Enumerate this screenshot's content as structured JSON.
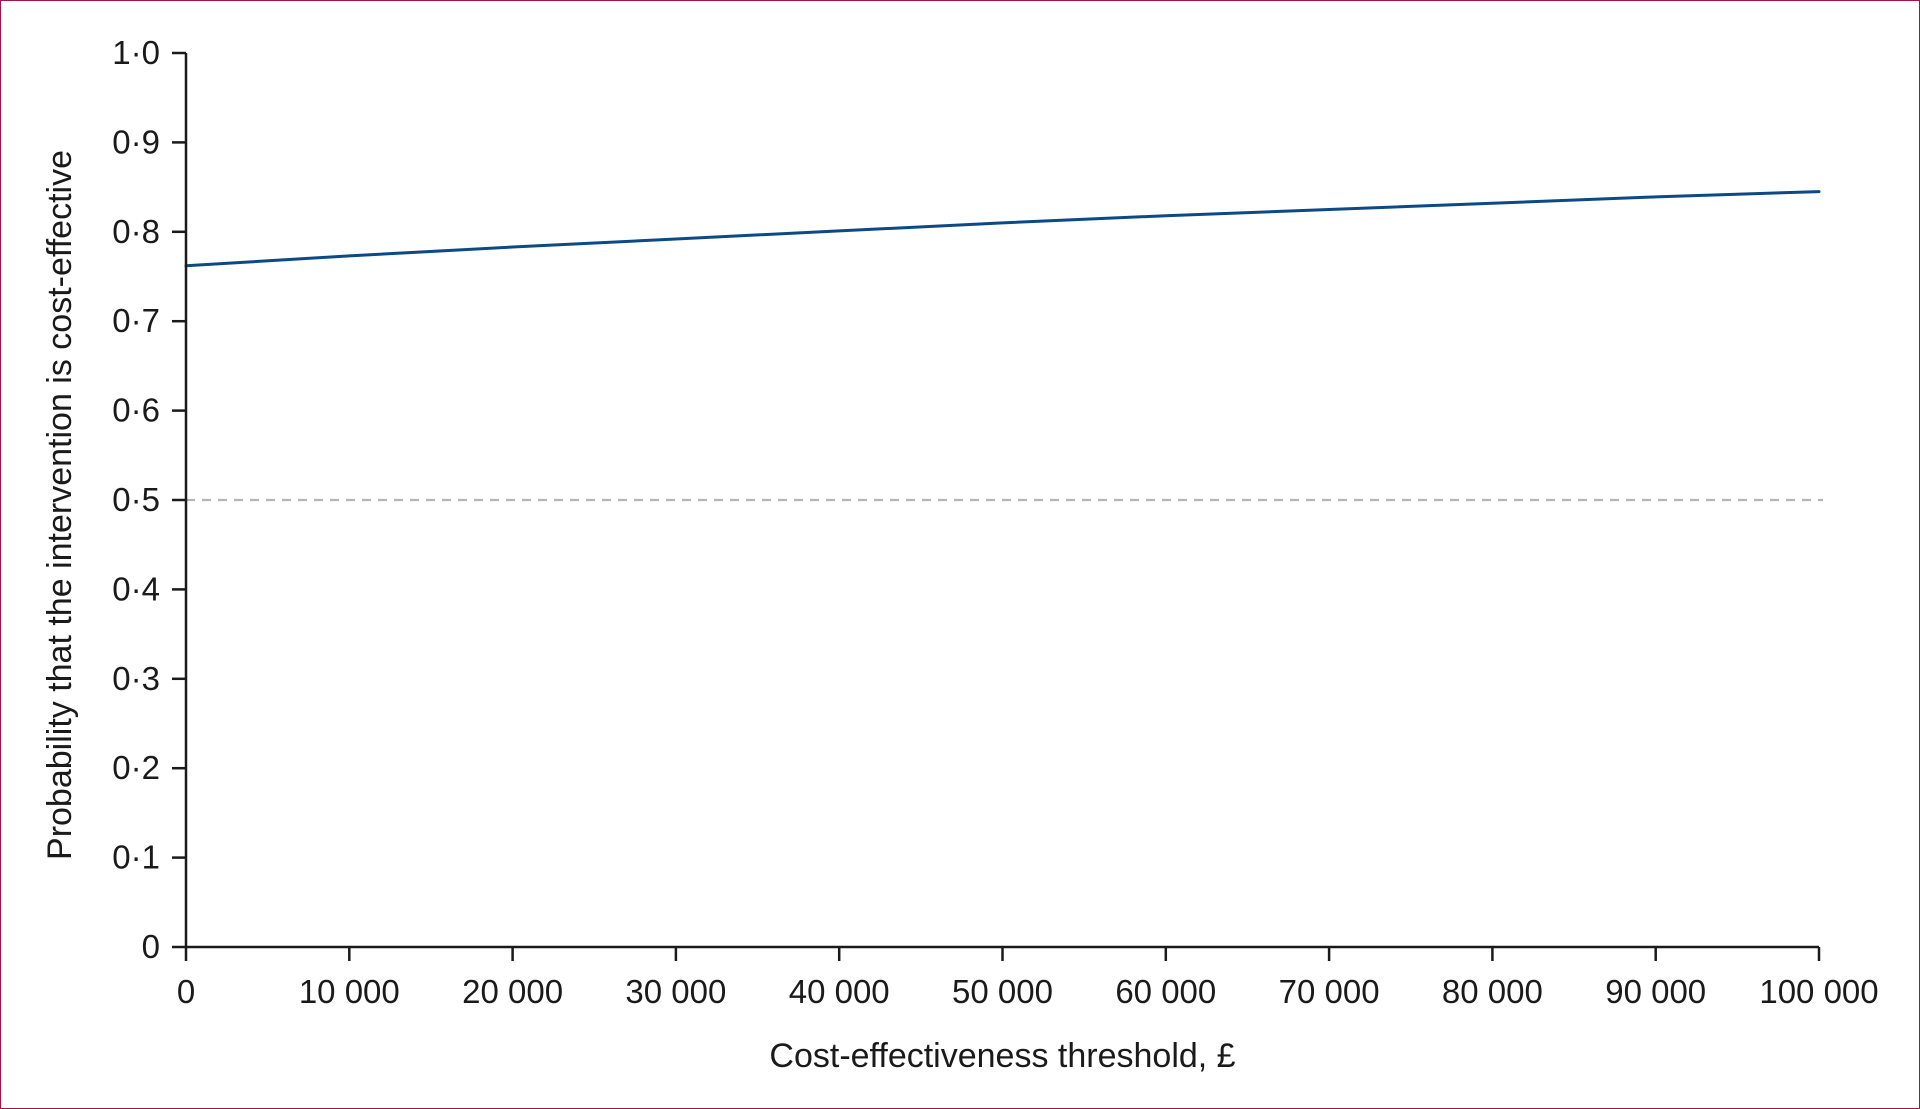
{
  "chart_data": {
    "type": "line",
    "title": "",
    "xlabel": "Cost-effectiveness threshold, £",
    "ylabel": "Probability that the intervention is cost-effective",
    "xlim": [
      0,
      100000
    ],
    "ylim": [
      0,
      1.0
    ],
    "x_ticks": [
      0,
      10000,
      20000,
      30000,
      40000,
      50000,
      60000,
      70000,
      80000,
      90000,
      100000
    ],
    "x_tick_labels": [
      "0",
      "10 000",
      "20 000",
      "30 000",
      "40 000",
      "50 000",
      "60 000",
      "70 000",
      "80 000",
      "90 000",
      "100 000"
    ],
    "y_ticks": [
      0,
      0.1,
      0.2,
      0.3,
      0.4,
      0.5,
      0.6,
      0.7,
      0.8,
      0.9,
      1.0
    ],
    "y_tick_labels": [
      "0",
      "0·1",
      "0·2",
      "0·3",
      "0·4",
      "0·5",
      "0·6",
      "0·7",
      "0·8",
      "0·9",
      "1·0"
    ],
    "grid": false,
    "reference_line": {
      "y": 0.5,
      "style": "dashed",
      "color": "#b5b5b5"
    },
    "series": [
      {
        "color": "#0b4a84",
        "x": [
          0,
          10000,
          20000,
          30000,
          40000,
          50000,
          60000,
          70000,
          80000,
          90000,
          100000
        ],
        "y": [
          0.762,
          0.773,
          0.783,
          0.792,
          0.801,
          0.81,
          0.818,
          0.825,
          0.832,
          0.839,
          0.845
        ]
      }
    ]
  }
}
